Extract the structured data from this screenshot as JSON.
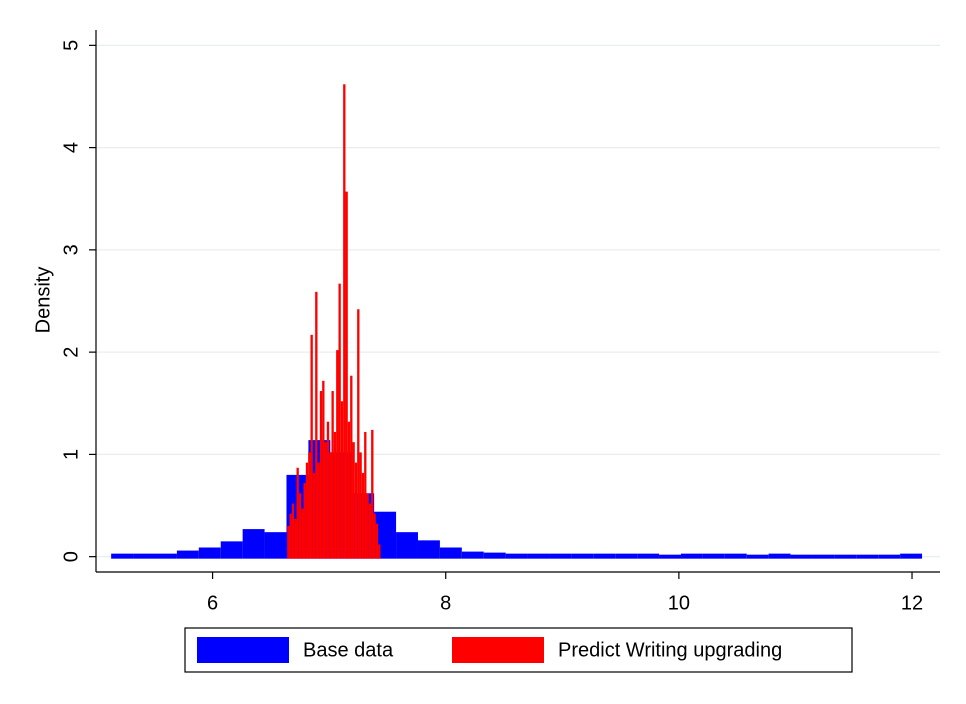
{
  "chart_data": {
    "type": "histogram",
    "y_label": "Density",
    "xlim": [
      5.0,
      12.24
    ],
    "xticks": [
      6,
      8,
      10,
      12
    ],
    "ylim": [
      -0.15,
      5.15
    ],
    "yticks": [
      0,
      1,
      2,
      3,
      4,
      5
    ],
    "grid": true,
    "legend": "bottom",
    "series": [
      {
        "name": "Base data",
        "color": "#0000ff",
        "bins": [
          5.13,
          5.318,
          5.506,
          5.694,
          5.882,
          6.07,
          6.258,
          6.446,
          6.634,
          6.822,
          7.01,
          7.198,
          7.386,
          7.574,
          7.762,
          7.95,
          8.138,
          8.326,
          8.514,
          8.702,
          8.89,
          9.078,
          9.266,
          9.454,
          9.642,
          9.83,
          10.018,
          10.206,
          10.394,
          10.582,
          10.77,
          10.958,
          11.146,
          11.334,
          11.522,
          11.71,
          11.898,
          12.086
        ],
        "values": [
          0.01,
          0.01,
          0.01,
          0.04,
          0.07,
          0.13,
          0.25,
          0.22,
          0.78,
          1.12,
          1.0,
          0.6,
          0.42,
          0.22,
          0.14,
          0.07,
          0.03,
          0.02,
          0.01,
          0.01,
          0.01,
          0.01,
          0.01,
          0.01,
          0.01,
          0,
          0.01,
          0.01,
          0.01,
          0,
          0.01,
          0,
          0,
          0,
          0,
          0,
          0.01
        ]
      },
      {
        "name": "Predict Writing upgrading",
        "color": "#ff0000",
        "bins": [
          6.64,
          6.66,
          6.68,
          6.7,
          6.72,
          6.74,
          6.76,
          6.78,
          6.8,
          6.82,
          6.84,
          6.86,
          6.88,
          6.9,
          6.92,
          6.94,
          6.96,
          6.98,
          7.0,
          7.02,
          7.04,
          7.06,
          7.08,
          7.1,
          7.12,
          7.14,
          7.16,
          7.18,
          7.2,
          7.22,
          7.24,
          7.26,
          7.28,
          7.3,
          7.32,
          7.34,
          7.36,
          7.38,
          7.4,
          7.42,
          7.44
        ],
        "values": [
          0.28,
          0.4,
          0.5,
          0.35,
          0.85,
          0.6,
          0.45,
          0.7,
          0.9,
          1.0,
          2.15,
          0.8,
          2.57,
          0.9,
          1.6,
          1.7,
          1.1,
          1.3,
          1.0,
          1.6,
          1.2,
          2.0,
          2.65,
          1.5,
          4.6,
          3.55,
          1.3,
          1.75,
          1.1,
          0.9,
          2.4,
          1.0,
          0.8,
          1.2,
          0.6,
          0.5,
          1.22,
          0.4,
          0.3,
          0.1
        ]
      }
    ]
  }
}
